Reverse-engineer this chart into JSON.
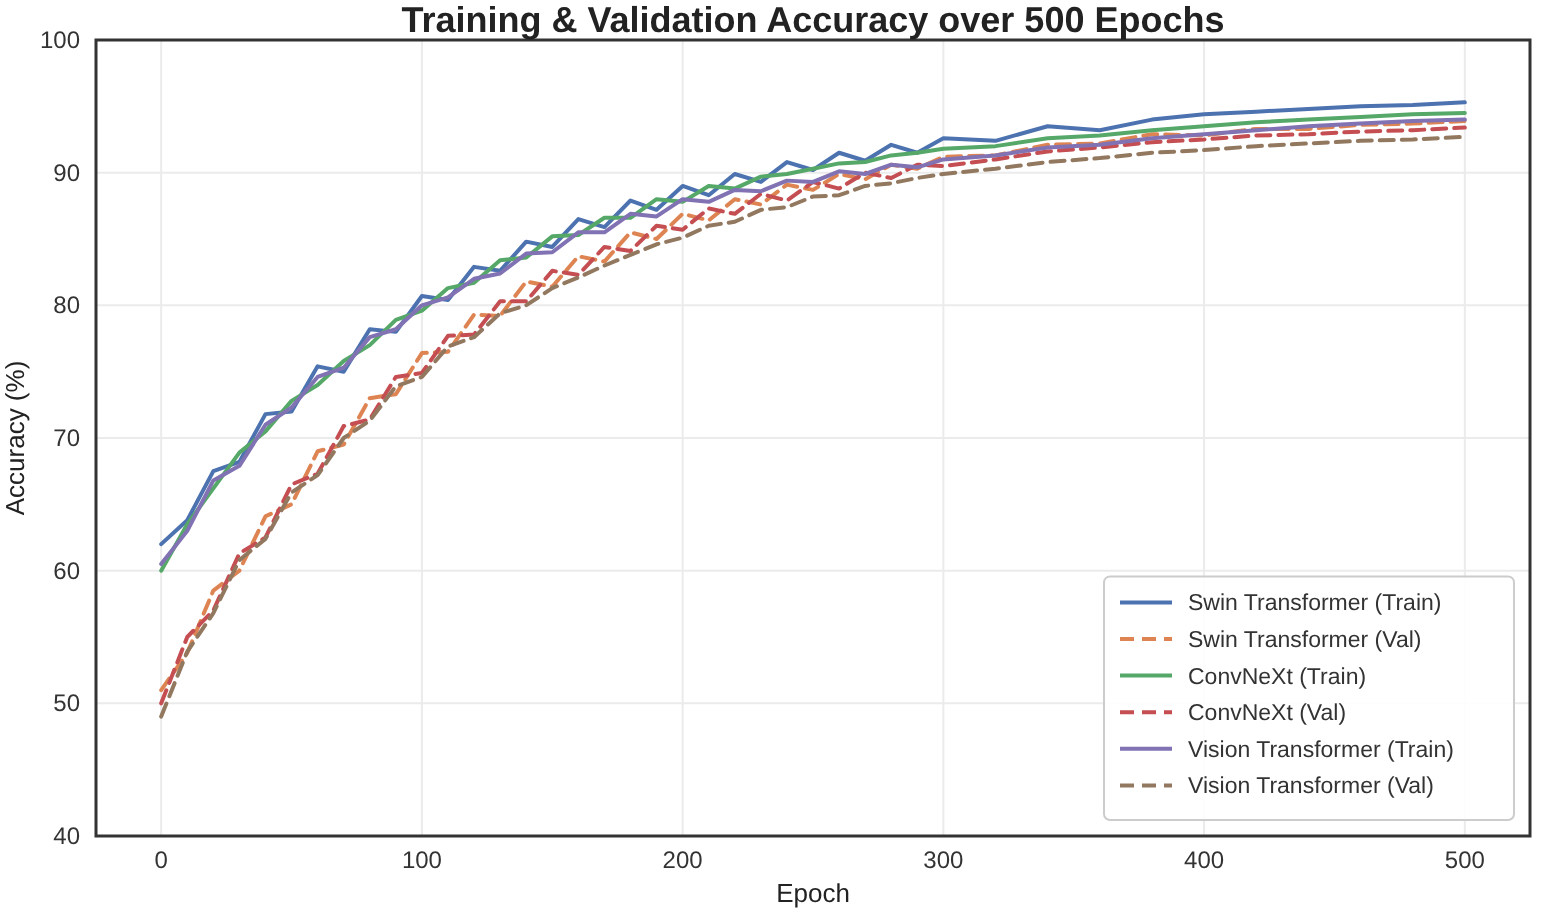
{
  "chart_data": {
    "type": "line",
    "title": "Training & Validation Accuracy over 500 Epochs",
    "xlabel": "Epoch",
    "ylabel": "Accuracy (%)",
    "x": [
      0,
      10,
      20,
      30,
      40,
      50,
      60,
      70,
      80,
      90,
      100,
      110,
      120,
      130,
      140,
      150,
      160,
      170,
      180,
      190,
      200,
      210,
      220,
      230,
      240,
      250,
      260,
      270,
      280,
      290,
      300,
      320,
      340,
      360,
      380,
      400,
      420,
      440,
      460,
      480,
      500
    ],
    "xlim": [
      -25,
      525
    ],
    "xticks": [
      0,
      100,
      200,
      300,
      400,
      500
    ],
    "ylim": [
      40,
      100
    ],
    "yticks": [
      40,
      50,
      60,
      70,
      80,
      90,
      100
    ],
    "grid": true,
    "legend": "bottom right",
    "series": [
      {
        "name": "Swin Transformer (Train)",
        "color": "#4c72b0",
        "line_style": "solid",
        "values": [
          62.0,
          63.8,
          67.5,
          68.2,
          71.8,
          72.0,
          75.4,
          75.0,
          78.2,
          78.0,
          80.7,
          80.4,
          82.9,
          82.6,
          84.8,
          84.4,
          86.5,
          85.9,
          87.9,
          87.2,
          89.0,
          88.3,
          89.9,
          89.3,
          90.8,
          90.2,
          91.5,
          90.9,
          92.1,
          91.5,
          92.6,
          92.4,
          93.5,
          93.2,
          94.0,
          94.4,
          94.6,
          94.8,
          95.0,
          95.1,
          95.3
        ]
      },
      {
        "name": "Swin Transformer (Val)",
        "color": "#dd8452",
        "line_style": "dashed",
        "values": [
          51.0,
          53.8,
          58.5,
          60.0,
          64.1,
          65.0,
          69.0,
          69.5,
          73.0,
          73.3,
          76.4,
          76.5,
          79.3,
          79.2,
          81.8,
          81.4,
          83.7,
          83.3,
          85.5,
          85.0,
          86.9,
          86.4,
          88.0,
          87.6,
          89.1,
          88.7,
          89.9,
          89.5,
          90.6,
          90.3,
          91.2,
          91.3,
          92.1,
          92.2,
          92.9,
          92.8,
          93.3,
          93.3,
          93.6,
          93.7,
          93.9
        ]
      },
      {
        "name": "ConvNeXt (Train)",
        "color": "#55a868",
        "line_style": "solid",
        "values": [
          60.0,
          63.5,
          66.2,
          68.9,
          70.5,
          72.8,
          74.0,
          75.8,
          77.0,
          78.9,
          79.6,
          81.3,
          81.7,
          83.4,
          83.6,
          85.2,
          85.3,
          86.6,
          86.6,
          88.0,
          87.8,
          89.0,
          88.8,
          89.7,
          89.9,
          90.3,
          90.7,
          90.8,
          91.3,
          91.5,
          91.8,
          92.0,
          92.6,
          92.8,
          93.2,
          93.5,
          93.8,
          94.0,
          94.2,
          94.4,
          94.5
        ]
      },
      {
        "name": "ConvNeXt (Val)",
        "color": "#c44e52",
        "line_style": "dashed",
        "values": [
          50.0,
          55.0,
          57.0,
          61.3,
          62.5,
          66.5,
          67.3,
          70.9,
          71.4,
          74.6,
          74.9,
          77.7,
          77.8,
          80.3,
          80.3,
          82.6,
          82.3,
          84.4,
          84.1,
          86.0,
          85.7,
          87.3,
          86.9,
          88.4,
          87.9,
          89.3,
          88.8,
          90.0,
          89.6,
          90.6,
          90.5,
          91.0,
          91.6,
          91.9,
          92.3,
          92.5,
          92.8,
          92.9,
          93.1,
          93.2,
          93.4
        ]
      },
      {
        "name": "Vision Transformer (Train)",
        "color": "#8172b3",
        "line_style": "solid",
        "values": [
          60.5,
          63.0,
          66.8,
          67.9,
          71.0,
          72.3,
          74.6,
          75.3,
          77.6,
          78.2,
          80.0,
          80.6,
          82.0,
          82.4,
          83.9,
          84.0,
          85.5,
          85.5,
          86.9,
          86.7,
          88.0,
          87.8,
          88.7,
          88.6,
          89.4,
          89.3,
          90.1,
          89.9,
          90.6,
          90.4,
          91.0,
          91.3,
          91.9,
          92.1,
          92.6,
          92.9,
          93.2,
          93.5,
          93.7,
          93.9,
          94.0
        ]
      },
      {
        "name": "Vision Transformer (Val)",
        "color": "#937860",
        "line_style": "dashed",
        "values": [
          49.0,
          53.9,
          56.8,
          60.8,
          62.4,
          65.9,
          67.2,
          70.0,
          71.3,
          73.9,
          74.6,
          76.9,
          77.6,
          79.4,
          80.0,
          81.3,
          82.1,
          83.0,
          83.8,
          84.6,
          85.1,
          86.0,
          86.3,
          87.2,
          87.4,
          88.2,
          88.3,
          89.0,
          89.2,
          89.6,
          89.9,
          90.3,
          90.8,
          91.1,
          91.5,
          91.7,
          92.0,
          92.2,
          92.4,
          92.5,
          92.7
        ]
      }
    ]
  }
}
